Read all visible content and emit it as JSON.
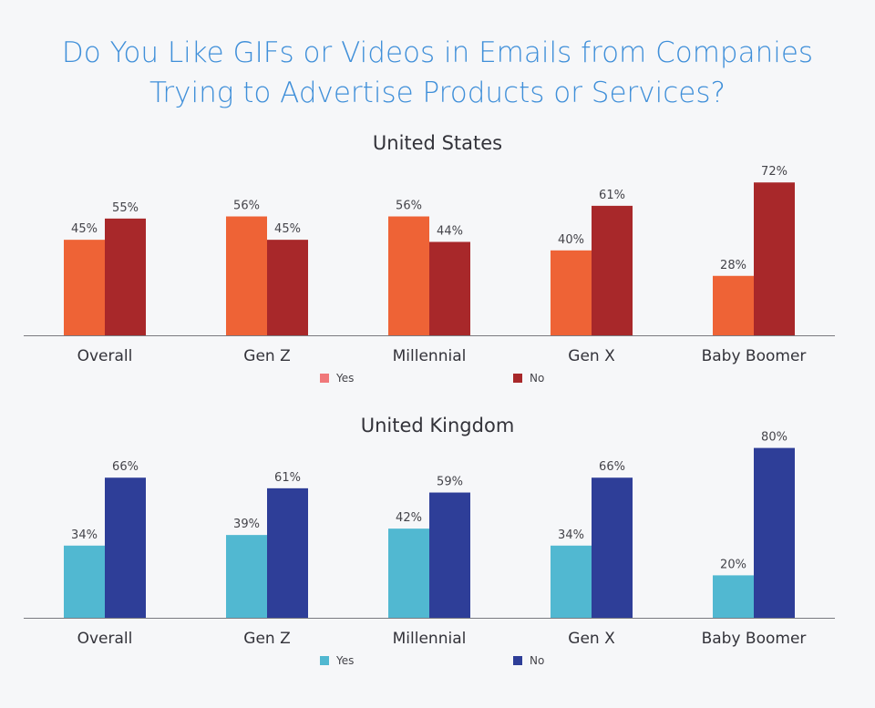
{
  "title_line1": "Do You Like GIFs or Videos in Emails from Companies",
  "title_line2": "Trying to Advertise Products or Services?",
  "chart_data": [
    {
      "type": "bar",
      "title": "United States",
      "categories": [
        "Overall",
        "Gen Z",
        "Millennial",
        "Gen X",
        "Baby Boomer"
      ],
      "series": [
        {
          "name": "Yes",
          "values": [
            45,
            56,
            56,
            40,
            28
          ],
          "labels": [
            "45%",
            "56%",
            "56%",
            "40%",
            "28%"
          ],
          "color": "#ee6336",
          "legend_color": "#f0787a"
        },
        {
          "name": "No",
          "values": [
            55,
            45,
            44,
            61,
            72
          ],
          "labels": [
            "55%",
            "45%",
            "44%",
            "61%",
            "72%"
          ],
          "color": "#a8282a",
          "legend_color": "#a8282a"
        }
      ],
      "ylim": [
        0,
        80
      ],
      "xlabel": "",
      "ylabel": "",
      "grid": false,
      "legend_position": "bottom"
    },
    {
      "type": "bar",
      "title": "United Kingdom",
      "categories": [
        "Overall",
        "Gen Z",
        "Millennial",
        "Gen X",
        "Baby Boomer"
      ],
      "series": [
        {
          "name": "Yes",
          "values": [
            34,
            39,
            42,
            34,
            20
          ],
          "labels": [
            "34%",
            "39%",
            "42%",
            "34%",
            "20%"
          ],
          "color": "#51b8d1",
          "legend_color": "#51b8d1"
        },
        {
          "name": "No",
          "values": [
            66,
            61,
            59,
            66,
            80
          ],
          "labels": [
            "66%",
            "61%",
            "59%",
            "66%",
            "80%"
          ],
          "color": "#2e3e98",
          "legend_color": "#2e3e98"
        }
      ],
      "ylim": [
        0,
        80
      ],
      "xlabel": "",
      "ylabel": "",
      "grid": false,
      "legend_position": "bottom"
    }
  ]
}
